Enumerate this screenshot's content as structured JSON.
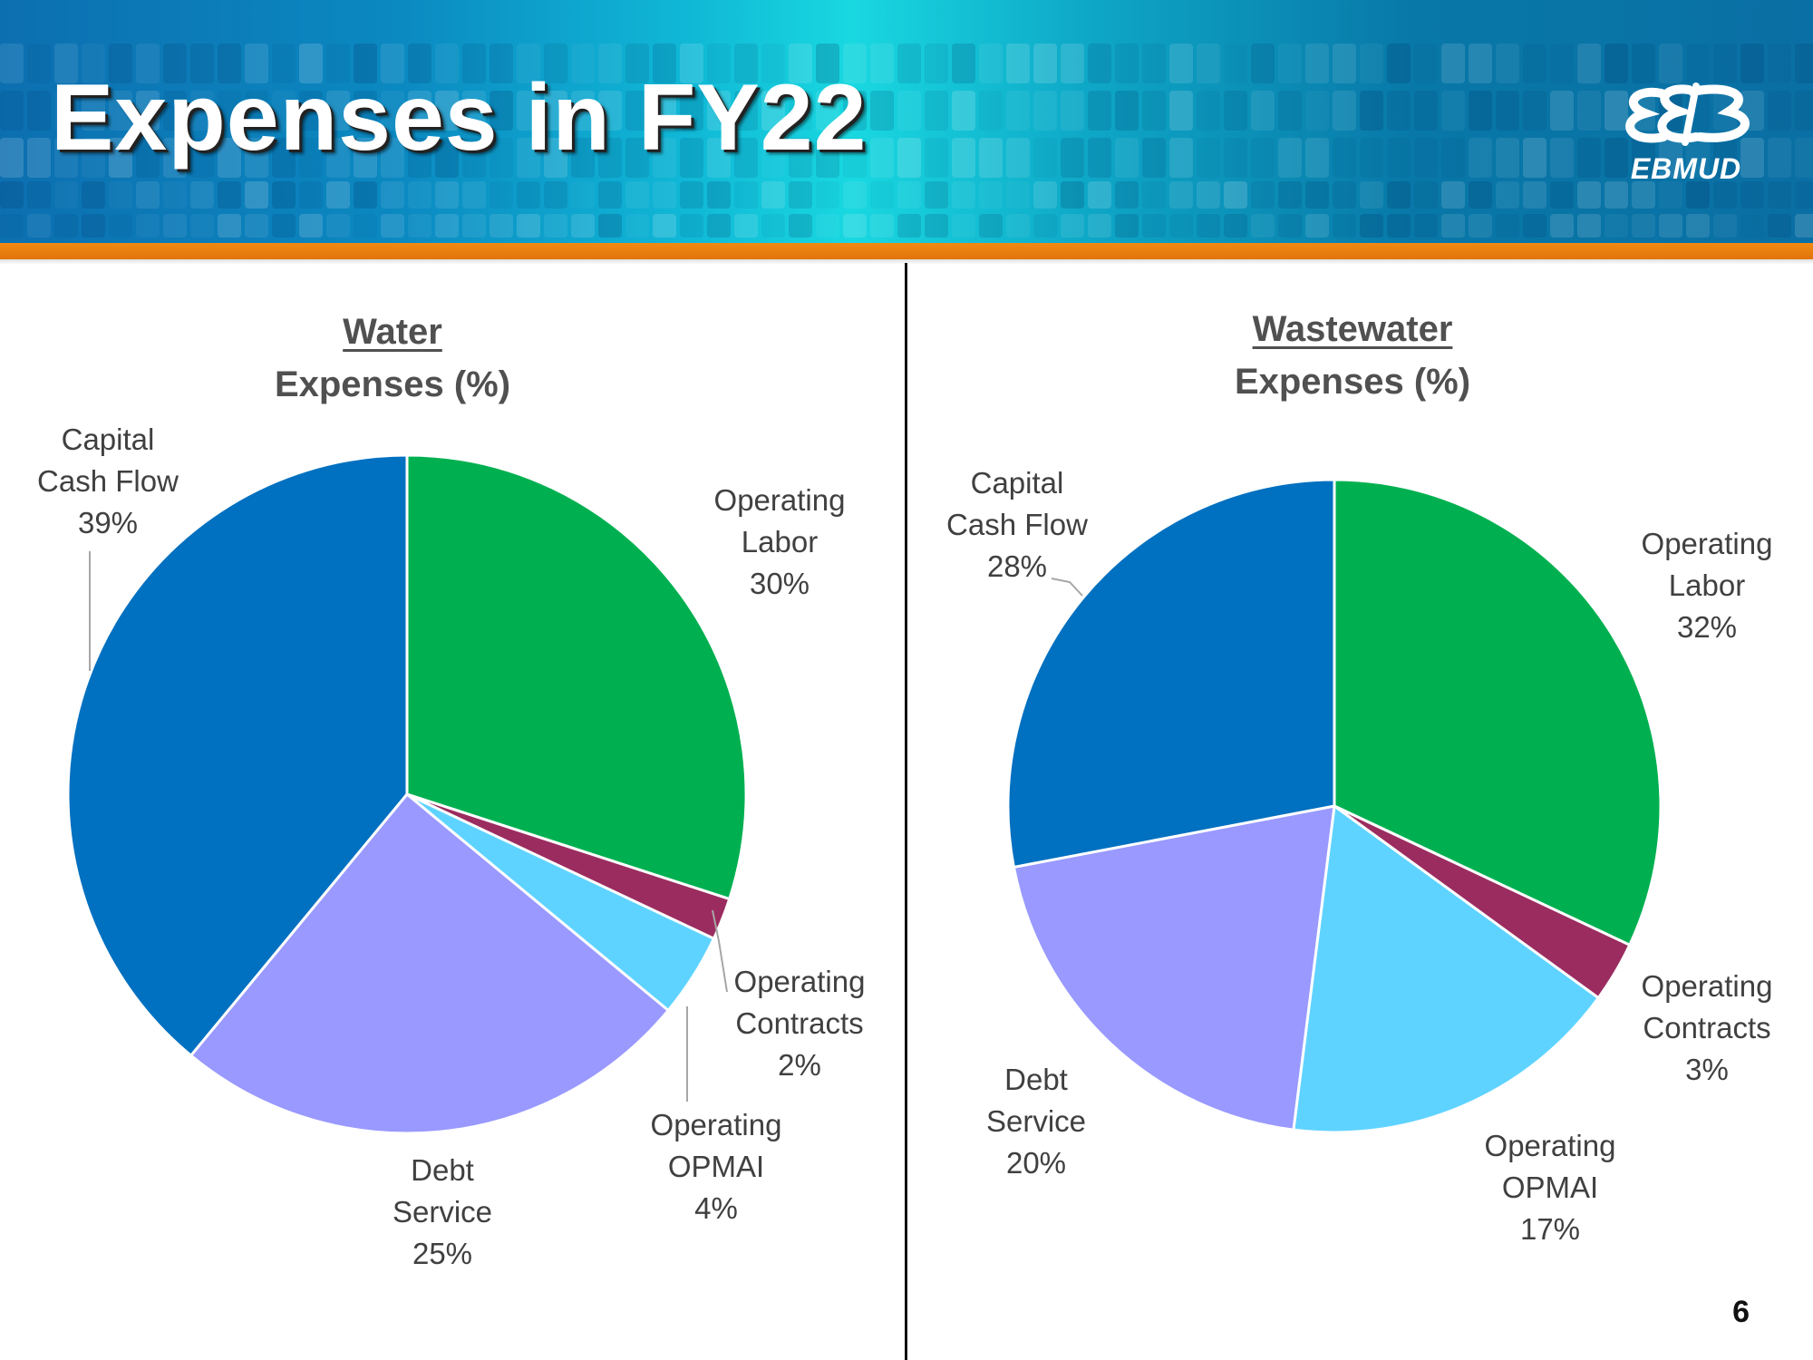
{
  "slide": {
    "title": "Expenses in FY22",
    "logo_text": "EBMUD",
    "page_number": "6"
  },
  "colors": {
    "operating_labor": "#00b050",
    "operating_contracts": "#9b2c5f",
    "operating_opmai": "#5fd3ff",
    "debt_service": "#9999ff",
    "capital_cash_flow": "#0070c0",
    "banner_accent": "#e8780a"
  },
  "chart_data": [
    {
      "type": "pie",
      "title": "Water",
      "subtitle": "Expenses (%)",
      "slices": [
        {
          "name": "Operating Labor",
          "label_lines": [
            "Operating",
            "Labor"
          ],
          "pct_label": "30%",
          "value": 30
        },
        {
          "name": "Operating Contracts",
          "label_lines": [
            "Operating",
            "Contracts"
          ],
          "pct_label": "2%",
          "value": 2
        },
        {
          "name": "Operating OPMAI",
          "label_lines": [
            "Operating",
            "OPMAI"
          ],
          "pct_label": "4%",
          "value": 4
        },
        {
          "name": "Debt Service",
          "label_lines": [
            "Debt",
            "Service"
          ],
          "pct_label": "25%",
          "value": 25
        },
        {
          "name": "Capital Cash Flow",
          "label_lines": [
            "Capital",
            "Cash Flow"
          ],
          "pct_label": "39%",
          "value": 39
        }
      ]
    },
    {
      "type": "pie",
      "title": "Wastewater",
      "subtitle": "Expenses (%)",
      "slices": [
        {
          "name": "Operating Labor",
          "label_lines": [
            "Operating",
            "Labor"
          ],
          "pct_label": "32%",
          "value": 32
        },
        {
          "name": "Operating Contracts",
          "label_lines": [
            "Operating",
            "Contracts"
          ],
          "pct_label": "3%",
          "value": 3
        },
        {
          "name": "Operating OPMAI",
          "label_lines": [
            "Operating",
            "OPMAI"
          ],
          "pct_label": "17%",
          "value": 17
        },
        {
          "name": "Debt Service",
          "label_lines": [
            "Debt",
            "Service"
          ],
          "pct_label": "20%",
          "value": 20
        },
        {
          "name": "Capital Cash Flow",
          "label_lines": [
            "Capital",
            "Cash Flow"
          ],
          "pct_label": "28%",
          "value": 28
        }
      ]
    }
  ]
}
